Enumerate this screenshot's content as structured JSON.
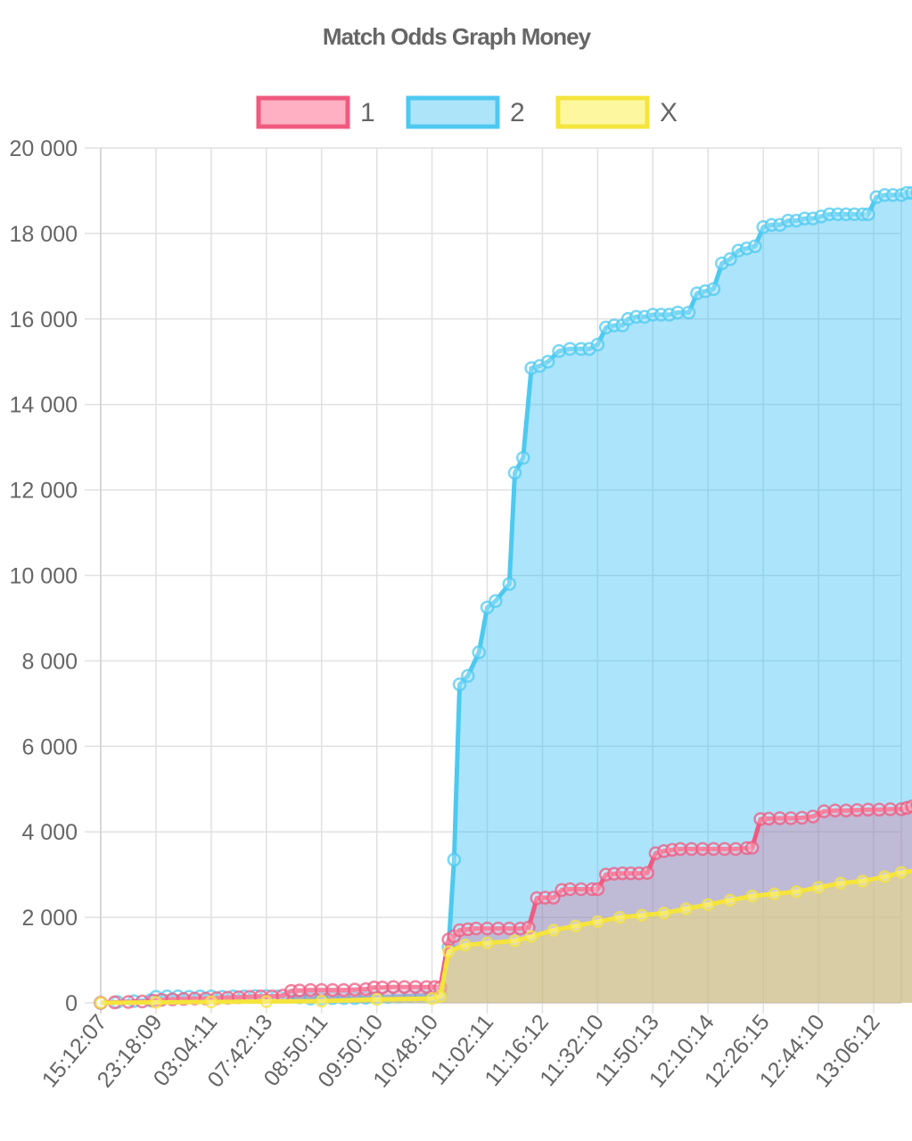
{
  "chart_data": {
    "type": "area",
    "title": "Match Odds Graph Money",
    "xlabel": "",
    "ylabel": "",
    "ylim": [
      0,
      20000
    ],
    "y_ticks": [
      "0",
      "2 000",
      "4 000",
      "6 000",
      "8 000",
      "10 000",
      "12 000",
      "14 000",
      "16 000",
      "18 000",
      "20 000"
    ],
    "x_tick_labels": [
      "15:12:07",
      "23:18:09",
      "03:04:11",
      "07:42:13",
      "08:50:11",
      "09:50:10",
      "10:48:10",
      "11:02:11",
      "11:16:12",
      "11:32:10",
      "11:50:13",
      "12:10:14",
      "12:26:15",
      "12:44:10",
      "13:06:12"
    ],
    "x_range": [
      0,
      14.5
    ],
    "grid": true,
    "legend_position": "top",
    "series": [
      {
        "name": "2",
        "color": "#4dc9f0",
        "fill": "rgba(54,190,245,0.42)",
        "points": [
          [
            0,
            0
          ],
          [
            0.3,
            20
          ],
          [
            0.6,
            40
          ],
          [
            0.9,
            60
          ],
          [
            1,
            140
          ],
          [
            1.2,
            150
          ],
          [
            1.4,
            150
          ],
          [
            1.6,
            140
          ],
          [
            1.8,
            150
          ],
          [
            2,
            150
          ],
          [
            2.2,
            140
          ],
          [
            2.4,
            150
          ],
          [
            2.6,
            150
          ],
          [
            2.8,
            160
          ],
          [
            3,
            160
          ],
          [
            3.2,
            150
          ],
          [
            3.4,
            150
          ],
          [
            3.6,
            130
          ],
          [
            3.8,
            100
          ],
          [
            4,
            100
          ],
          [
            4.2,
            110
          ],
          [
            4.4,
            110
          ],
          [
            4.6,
            110
          ],
          [
            4.8,
            120
          ],
          [
            5,
            130
          ],
          [
            5.2,
            140
          ],
          [
            5.4,
            150
          ],
          [
            5.6,
            160
          ],
          [
            5.8,
            170
          ],
          [
            6,
            180
          ],
          [
            6.15,
            200
          ],
          [
            6.3,
            1300
          ],
          [
            6.4,
            3350
          ],
          [
            6.5,
            7450
          ],
          [
            6.65,
            7650
          ],
          [
            6.85,
            8200
          ],
          [
            7,
            9250
          ],
          [
            7.15,
            9400
          ],
          [
            7.4,
            9800
          ],
          [
            7.5,
            12400
          ],
          [
            7.65,
            12750
          ],
          [
            7.8,
            14850
          ],
          [
            7.95,
            14900
          ],
          [
            8.1,
            15000
          ],
          [
            8.3,
            15250
          ],
          [
            8.5,
            15300
          ],
          [
            8.7,
            15300
          ],
          [
            8.85,
            15300
          ],
          [
            9,
            15400
          ],
          [
            9.15,
            15800
          ],
          [
            9.3,
            15850
          ],
          [
            9.45,
            15850
          ],
          [
            9.55,
            16000
          ],
          [
            9.7,
            16050
          ],
          [
            9.85,
            16050
          ],
          [
            10,
            16100
          ],
          [
            10.15,
            16100
          ],
          [
            10.3,
            16100
          ],
          [
            10.45,
            16150
          ],
          [
            10.65,
            16150
          ],
          [
            10.8,
            16600
          ],
          [
            10.95,
            16650
          ],
          [
            11.1,
            16700
          ],
          [
            11.25,
            17300
          ],
          [
            11.4,
            17400
          ],
          [
            11.55,
            17600
          ],
          [
            11.7,
            17650
          ],
          [
            11.85,
            17700
          ],
          [
            12,
            18150
          ],
          [
            12.15,
            18200
          ],
          [
            12.3,
            18200
          ],
          [
            12.45,
            18300
          ],
          [
            12.6,
            18300
          ],
          [
            12.75,
            18350
          ],
          [
            12.9,
            18350
          ],
          [
            13.05,
            18400
          ],
          [
            13.2,
            18450
          ],
          [
            13.35,
            18450
          ],
          [
            13.5,
            18450
          ],
          [
            13.65,
            18450
          ],
          [
            13.8,
            18450
          ],
          [
            13.9,
            18450
          ],
          [
            14.05,
            18850
          ],
          [
            14.2,
            18900
          ],
          [
            14.35,
            18900
          ],
          [
            14.5,
            18900
          ],
          [
            14.6,
            18950
          ],
          [
            14.7,
            18950
          ],
          [
            14.8,
            18950
          ]
        ]
      },
      {
        "name": "1",
        "color": "#f05a80",
        "fill": "rgba(240,90,128,0.30)",
        "points": [
          [
            0,
            0
          ],
          [
            0.25,
            10
          ],
          [
            0.5,
            20
          ],
          [
            0.75,
            30
          ],
          [
            0.95,
            50
          ],
          [
            1.1,
            70
          ],
          [
            1.3,
            80
          ],
          [
            1.5,
            90
          ],
          [
            1.7,
            100
          ],
          [
            1.9,
            100
          ],
          [
            2.1,
            110
          ],
          [
            2.3,
            120
          ],
          [
            2.5,
            130
          ],
          [
            2.7,
            140
          ],
          [
            2.9,
            150
          ],
          [
            3.1,
            150
          ],
          [
            3.3,
            170
          ],
          [
            3.45,
            280
          ],
          [
            3.6,
            290
          ],
          [
            3.8,
            300
          ],
          [
            4,
            300
          ],
          [
            4.2,
            300
          ],
          [
            4.4,
            300
          ],
          [
            4.6,
            310
          ],
          [
            4.8,
            320
          ],
          [
            4.95,
            360
          ],
          [
            5.1,
            360
          ],
          [
            5.3,
            370
          ],
          [
            5.5,
            370
          ],
          [
            5.7,
            370
          ],
          [
            5.9,
            370
          ],
          [
            6.05,
            370
          ],
          [
            6.15,
            360
          ],
          [
            6.3,
            1480
          ],
          [
            6.4,
            1560
          ],
          [
            6.5,
            1700
          ],
          [
            6.65,
            1720
          ],
          [
            6.8,
            1740
          ],
          [
            7,
            1740
          ],
          [
            7.2,
            1740
          ],
          [
            7.4,
            1740
          ],
          [
            7.6,
            1740
          ],
          [
            7.75,
            1760
          ],
          [
            7.9,
            2450
          ],
          [
            8.05,
            2460
          ],
          [
            8.2,
            2460
          ],
          [
            8.35,
            2640
          ],
          [
            8.5,
            2660
          ],
          [
            8.7,
            2660
          ],
          [
            8.9,
            2660
          ],
          [
            9,
            2660
          ],
          [
            9.15,
            3000
          ],
          [
            9.3,
            3020
          ],
          [
            9.45,
            3030
          ],
          [
            9.6,
            3030
          ],
          [
            9.75,
            3030
          ],
          [
            9.9,
            3040
          ],
          [
            10.05,
            3500
          ],
          [
            10.2,
            3550
          ],
          [
            10.35,
            3580
          ],
          [
            10.5,
            3600
          ],
          [
            10.7,
            3600
          ],
          [
            10.9,
            3600
          ],
          [
            11.1,
            3600
          ],
          [
            11.3,
            3600
          ],
          [
            11.5,
            3600
          ],
          [
            11.7,
            3620
          ],
          [
            11.8,
            3630
          ],
          [
            11.95,
            4300
          ],
          [
            12.1,
            4310
          ],
          [
            12.3,
            4320
          ],
          [
            12.5,
            4320
          ],
          [
            12.7,
            4330
          ],
          [
            12.9,
            4360
          ],
          [
            13.1,
            4480
          ],
          [
            13.3,
            4500
          ],
          [
            13.5,
            4500
          ],
          [
            13.7,
            4510
          ],
          [
            13.9,
            4520
          ],
          [
            14.1,
            4520
          ],
          [
            14.3,
            4530
          ],
          [
            14.5,
            4530
          ],
          [
            14.6,
            4560
          ],
          [
            14.7,
            4600
          ],
          [
            14.8,
            4630
          ]
        ]
      },
      {
        "name": "X",
        "color": "#f5e43c",
        "fill": "rgba(255,236,90,0.40)",
        "points": [
          [
            0,
            0
          ],
          [
            1,
            10
          ],
          [
            2,
            20
          ],
          [
            3,
            30
          ],
          [
            4,
            40
          ],
          [
            5,
            80
          ],
          [
            6,
            100
          ],
          [
            6.15,
            150
          ],
          [
            6.3,
            1200
          ],
          [
            6.6,
            1350
          ],
          [
            7,
            1400
          ],
          [
            7.5,
            1450
          ],
          [
            7.8,
            1550
          ],
          [
            8.2,
            1700
          ],
          [
            8.6,
            1800
          ],
          [
            9,
            1900
          ],
          [
            9.4,
            2000
          ],
          [
            9.8,
            2050
          ],
          [
            10.2,
            2100
          ],
          [
            10.6,
            2200
          ],
          [
            11,
            2300
          ],
          [
            11.4,
            2400
          ],
          [
            11.8,
            2500
          ],
          [
            12.2,
            2550
          ],
          [
            12.6,
            2600
          ],
          [
            13,
            2700
          ],
          [
            13.4,
            2800
          ],
          [
            13.8,
            2850
          ],
          [
            14.2,
            2950
          ],
          [
            14.5,
            3050
          ],
          [
            14.8,
            3100
          ]
        ]
      }
    ],
    "legend": [
      {
        "name": "1",
        "border": "#f05a80",
        "fill": "#ffb0c2"
      },
      {
        "name": "2",
        "border": "#4dc9f0",
        "fill": "#aee4fa"
      },
      {
        "name": "X",
        "border": "#f5e43c",
        "fill": "#fdf7a0"
      }
    ]
  }
}
